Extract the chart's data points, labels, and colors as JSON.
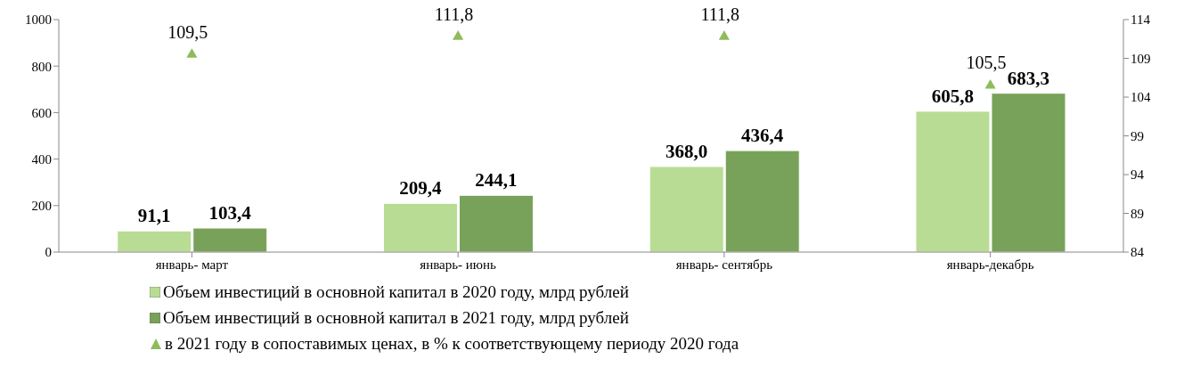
{
  "chart_data": {
    "type": "bar",
    "categories": [
      "январь- март",
      "январь- июнь",
      "январь- сентябрь",
      "январь-декабрь"
    ],
    "series": [
      {
        "name": "Объем инвестиций в основной капитал в 2020 году, млрд рублей",
        "color": "#b8dc94",
        "values": [
          91.1,
          209.4,
          368.0,
          605.8
        ],
        "value_labels": [
          "91,1",
          "209,4",
          "368,0",
          "605,8"
        ]
      },
      {
        "name": "Объем инвестиций в основной капитал в 2021 году, млрд рублей",
        "color": "#78a25a",
        "values": [
          103.4,
          244.1,
          436.4,
          683.3
        ],
        "value_labels": [
          "103,4",
          "244,1",
          "436,4",
          "683,3"
        ]
      },
      {
        "name": "в 2021 году в сопоставимых ценах, в % к соответствующему периоду 2020 года",
        "type": "scatter",
        "axis": "y2",
        "marker": "triangle",
        "color": "#8fbc5a",
        "values": [
          109.5,
          111.8,
          111.8,
          105.5
        ],
        "value_labels": [
          "109,5",
          "111,8",
          "111,8",
          "105,5"
        ]
      }
    ],
    "ylim": [
      0,
      1000
    ],
    "yticks": [
      0,
      200,
      400,
      600,
      800,
      1000
    ],
    "y2lim": [
      84,
      114
    ],
    "y2ticks": [
      84,
      89,
      94,
      99,
      104,
      109,
      114
    ],
    "grid": false,
    "legend": "bottom"
  }
}
